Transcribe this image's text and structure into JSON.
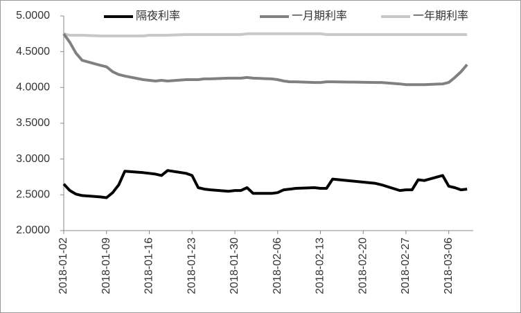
{
  "chart_data": {
    "type": "line",
    "x": [
      "2018-01-02",
      "2018-01-03",
      "2018-01-04",
      "2018-01-05",
      "2018-01-08",
      "2018-01-09",
      "2018-01-10",
      "2018-01-11",
      "2018-01-12",
      "2018-01-15",
      "2018-01-16",
      "2018-01-17",
      "2018-01-18",
      "2018-01-19",
      "2018-01-22",
      "2018-01-23",
      "2018-01-24",
      "2018-01-25",
      "2018-01-26",
      "2018-01-29",
      "2018-01-30",
      "2018-01-31",
      "2018-02-01",
      "2018-02-02",
      "2018-02-05",
      "2018-02-06",
      "2018-02-07",
      "2018-02-08",
      "2018-02-09",
      "2018-02-12",
      "2018-02-13",
      "2018-02-14",
      "2018-02-15",
      "2018-02-22",
      "2018-02-23",
      "2018-02-26",
      "2018-02-27",
      "2018-02-28",
      "2018-03-01",
      "2018-03-02",
      "2018-03-05",
      "2018-03-06",
      "2018-03-07",
      "2018-03-08",
      "2018-03-09"
    ],
    "series": [
      {
        "name": "隔夜利率",
        "color": "#000000",
        "values": [
          2.65,
          2.56,
          2.51,
          2.49,
          2.47,
          2.46,
          2.53,
          2.64,
          2.83,
          2.81,
          2.8,
          2.79,
          2.77,
          2.84,
          2.8,
          2.77,
          2.6,
          2.58,
          2.57,
          2.55,
          2.56,
          2.56,
          2.6,
          2.52,
          2.52,
          2.53,
          2.57,
          2.58,
          2.59,
          2.6,
          2.59,
          2.59,
          2.72,
          2.66,
          2.64,
          2.56,
          2.57,
          2.57,
          2.71,
          2.7,
          2.77,
          2.62,
          2.6,
          2.57,
          2.58
        ]
      },
      {
        "name": "一月期利率",
        "color": "#808080",
        "values": [
          4.75,
          4.63,
          4.48,
          4.38,
          4.31,
          4.29,
          4.22,
          4.18,
          4.16,
          4.11,
          4.1,
          4.09,
          4.1,
          4.09,
          4.11,
          4.11,
          4.11,
          4.12,
          4.12,
          4.13,
          4.13,
          4.13,
          4.14,
          4.13,
          4.12,
          4.11,
          4.09,
          4.08,
          4.08,
          4.07,
          4.07,
          4.08,
          4.08,
          4.07,
          4.07,
          4.05,
          4.04,
          4.04,
          4.04,
          4.04,
          4.05,
          4.07,
          4.14,
          4.22,
          4.32
        ]
      },
      {
        "name": "一年期利率",
        "color": "#c8c8c8",
        "values": [
          4.75,
          4.73,
          4.73,
          4.73,
          4.72,
          4.72,
          4.72,
          4.72,
          4.72,
          4.72,
          4.73,
          4.73,
          4.73,
          4.73,
          4.74,
          4.74,
          4.74,
          4.74,
          4.74,
          4.74,
          4.74,
          4.74,
          4.75,
          4.75,
          4.75,
          4.75,
          4.75,
          4.75,
          4.75,
          4.75,
          4.75,
          4.74,
          4.74,
          4.74,
          4.74,
          4.74,
          4.74,
          4.74,
          4.74,
          4.74,
          4.74,
          4.74,
          4.74,
          4.74,
          4.74
        ]
      }
    ],
    "xlim": [
      "2018-01-02",
      "2018-03-10"
    ],
    "xticks": [
      "2018-01-02",
      "2018-01-09",
      "2018-01-16",
      "2018-01-23",
      "2018-01-30",
      "2018-02-06",
      "2018-02-13",
      "2018-02-20",
      "2018-02-27",
      "2018-03-06"
    ],
    "ylim": [
      2,
      5
    ],
    "yticks": [
      {
        "value": 2,
        "label": "2.0000"
      },
      {
        "value": 2.5,
        "label": "2.5000"
      },
      {
        "value": 3,
        "label": "3.0000"
      },
      {
        "value": 3.5,
        "label": "3.5000"
      },
      {
        "value": 4,
        "label": "4.0000"
      },
      {
        "value": 4.5,
        "label": "4.5000"
      },
      {
        "value": 5,
        "label": "5.0000"
      }
    ]
  }
}
